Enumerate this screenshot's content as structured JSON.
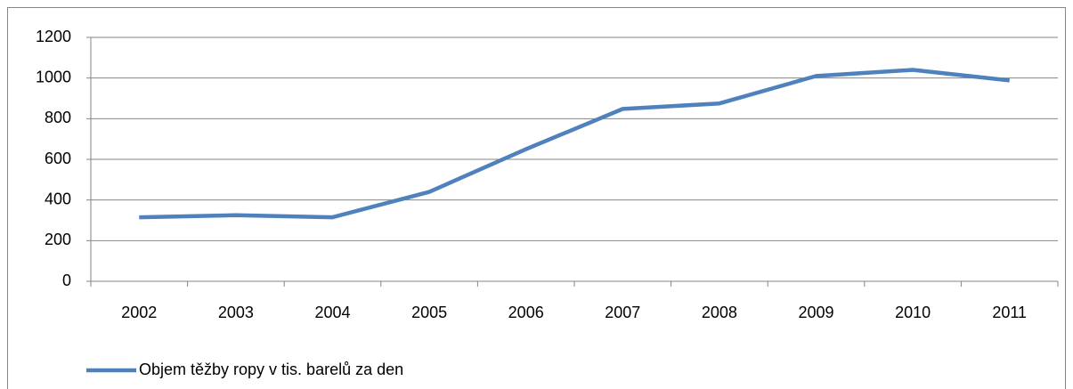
{
  "chart_data": {
    "type": "line",
    "categories": [
      "2002",
      "2003",
      "2004",
      "2005",
      "2006",
      "2007",
      "2008",
      "2009",
      "2010",
      "2011"
    ],
    "series": [
      {
        "name": "Objem těžby ropy v tis. barelů za den",
        "color": "#4f81bd",
        "values": [
          315,
          325,
          315,
          440,
          650,
          848,
          875,
          1010,
          1040,
          988
        ]
      }
    ],
    "ylim": [
      0,
      1200
    ],
    "yticks": [
      0,
      200,
      400,
      600,
      800,
      1000,
      1200
    ],
    "grid": true,
    "legend": "bottom-left"
  }
}
